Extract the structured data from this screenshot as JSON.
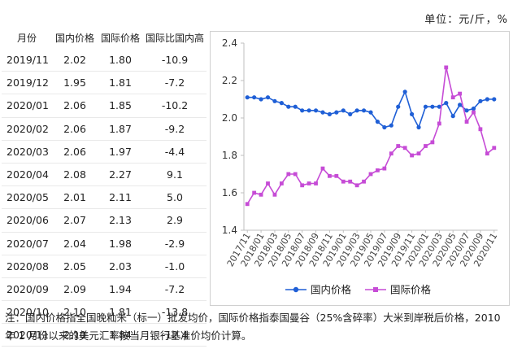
{
  "unit_label": "单位：元/斤，%",
  "table": {
    "headers": [
      "月份",
      "国内价格",
      "国际价格",
      "国际比国内高"
    ],
    "rows": [
      [
        "2019/11",
        "2.02",
        "1.80",
        "-10.9"
      ],
      [
        "2019/12",
        "1.95",
        "1.81",
        "-7.2"
      ],
      [
        "2020/01",
        "2.06",
        "1.85",
        "-10.2"
      ],
      [
        "2020/02",
        "2.06",
        "1.87",
        "-9.2"
      ],
      [
        "2020/03",
        "2.06",
        "1.97",
        "-4.4"
      ],
      [
        "2020/04",
        "2.08",
        "2.27",
        "9.1"
      ],
      [
        "2020/05",
        "2.01",
        "2.11",
        "5.0"
      ],
      [
        "2020/06",
        "2.07",
        "2.13",
        "2.9"
      ],
      [
        "2020/07",
        "2.04",
        "1.98",
        "-2.9"
      ],
      [
        "2020/08",
        "2.05",
        "2.03",
        "-1.0"
      ],
      [
        "2020/09",
        "2.09",
        "1.94",
        "-7.2"
      ],
      [
        "2020/10",
        "2.10",
        "1.81",
        "-13.8"
      ],
      [
        "2020/11",
        "2.10",
        "1.84",
        "-12.4"
      ]
    ]
  },
  "chart_data": {
    "type": "line",
    "title": "",
    "xlabel": "",
    "ylabel": "",
    "ylim": [
      1.4,
      2.4
    ],
    "yticks": [
      "1.4",
      "1.6",
      "1.8",
      "2.0",
      "2.2",
      "2.4"
    ],
    "x": [
      "2017/11",
      "2017/12",
      "2018/01",
      "2018/02",
      "2018/03",
      "2018/04",
      "2018/05",
      "2018/06",
      "2018/07",
      "2018/08",
      "2018/09",
      "2018/10",
      "2018/11",
      "2018/12",
      "2019/01",
      "2019/02",
      "2019/03",
      "2019/04",
      "2019/05",
      "2019/06",
      "2019/07",
      "2019/08",
      "2019/09",
      "2019/10",
      "2019/11",
      "2019/12",
      "2020/01",
      "2020/02",
      "2020/03",
      "2020/04",
      "2020/05",
      "2020/06",
      "2020/07",
      "2020/08",
      "2020/09",
      "2020/10",
      "2020/11"
    ],
    "xtick_labels": [
      "2017/11",
      "2018/01",
      "2018/03",
      "2018/05",
      "2018/07",
      "2018/09",
      "2018/11",
      "2019/01",
      "2019/03",
      "2019/05",
      "2019/07",
      "2019/09",
      "2019/11",
      "2020/01",
      "2020/03",
      "2020/05",
      "2020/07",
      "2020/09",
      "2020/11"
    ],
    "series": [
      {
        "name": "国内价格",
        "color": "#1f5fd6",
        "marker": "circle",
        "values": [
          2.11,
          2.11,
          2.1,
          2.11,
          2.09,
          2.08,
          2.06,
          2.06,
          2.04,
          2.04,
          2.04,
          2.03,
          2.02,
          2.03,
          2.04,
          2.02,
          2.04,
          2.04,
          2.03,
          1.98,
          1.95,
          1.96,
          2.06,
          2.14,
          2.02,
          1.95,
          2.06,
          2.06,
          2.06,
          2.08,
          2.01,
          2.07,
          2.04,
          2.05,
          2.09,
          2.1,
          2.1
        ]
      },
      {
        "name": "国际价格",
        "color": "#c64cd6",
        "marker": "square",
        "values": [
          1.54,
          1.6,
          1.59,
          1.65,
          1.59,
          1.65,
          1.7,
          1.7,
          1.64,
          1.65,
          1.65,
          1.73,
          1.69,
          1.69,
          1.66,
          1.66,
          1.64,
          1.66,
          1.7,
          1.72,
          1.73,
          1.81,
          1.85,
          1.84,
          1.8,
          1.81,
          1.85,
          1.87,
          1.97,
          2.27,
          2.11,
          2.13,
          1.98,
          2.03,
          1.94,
          1.81,
          1.84
        ]
      }
    ],
    "legend_position": "bottom"
  },
  "note": "注：国内价格指全国晚籼米（标一）批发均价，国际价格指泰国曼谷（25%含碎率）大米到岸税后价格，2010 年 1 月份以来的美元汇率按当月银行基准价均价计算。"
}
